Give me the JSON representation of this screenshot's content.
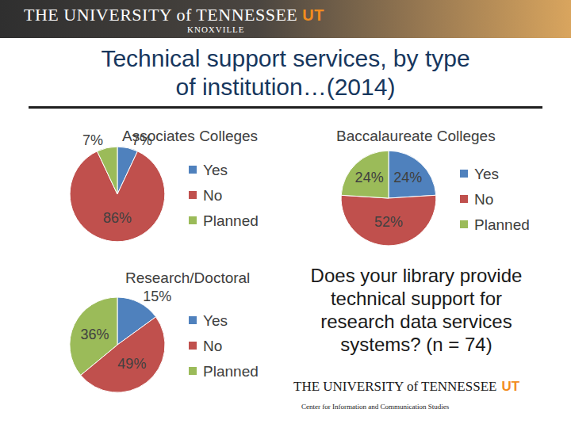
{
  "header": {
    "university": "THE UNIVERSITY of TENNESSEE",
    "mark": "UT",
    "campus": "KNOXVILLE"
  },
  "title": [
    "Technical support services, by type",
    "of institution…(2014)"
  ],
  "chart_data": [
    {
      "type": "pie",
      "title": "Associates Colleges",
      "categories": [
        "Yes",
        "No",
        "Planned"
      ],
      "values": [
        7,
        86,
        7
      ],
      "value_labels": [
        "7%",
        "86%",
        "7%"
      ],
      "colors": [
        "#4f81bd",
        "#c0504d",
        "#9bbb59"
      ],
      "data_labels": true,
      "legend": "right"
    },
    {
      "type": "pie",
      "title": "Baccalaureate Colleges",
      "categories": [
        "Yes",
        "No",
        "Planned"
      ],
      "values": [
        24,
        52,
        24
      ],
      "value_labels": [
        "24%",
        "52%",
        "24%"
      ],
      "colors": [
        "#4f81bd",
        "#c0504d",
        "#9bbb59"
      ],
      "data_labels": true,
      "legend": "right"
    },
    {
      "type": "pie",
      "title": "Research/Doctoral",
      "categories": [
        "Yes",
        "No",
        "Planned"
      ],
      "values": [
        15,
        49,
        36
      ],
      "value_labels": [
        "15%",
        "49%",
        "36%"
      ],
      "colors": [
        "#4f81bd",
        "#c0504d",
        "#9bbb59"
      ],
      "data_labels": true,
      "legend": "right"
    }
  ],
  "question": [
    "Does your library provide",
    "technical support for",
    "research data services",
    "systems? (n = 74)"
  ],
  "footer": {
    "university": "THE UNIVERSITY of TENNESSEE",
    "mark": "UT",
    "center": "Center for Information and Communication Studies"
  }
}
